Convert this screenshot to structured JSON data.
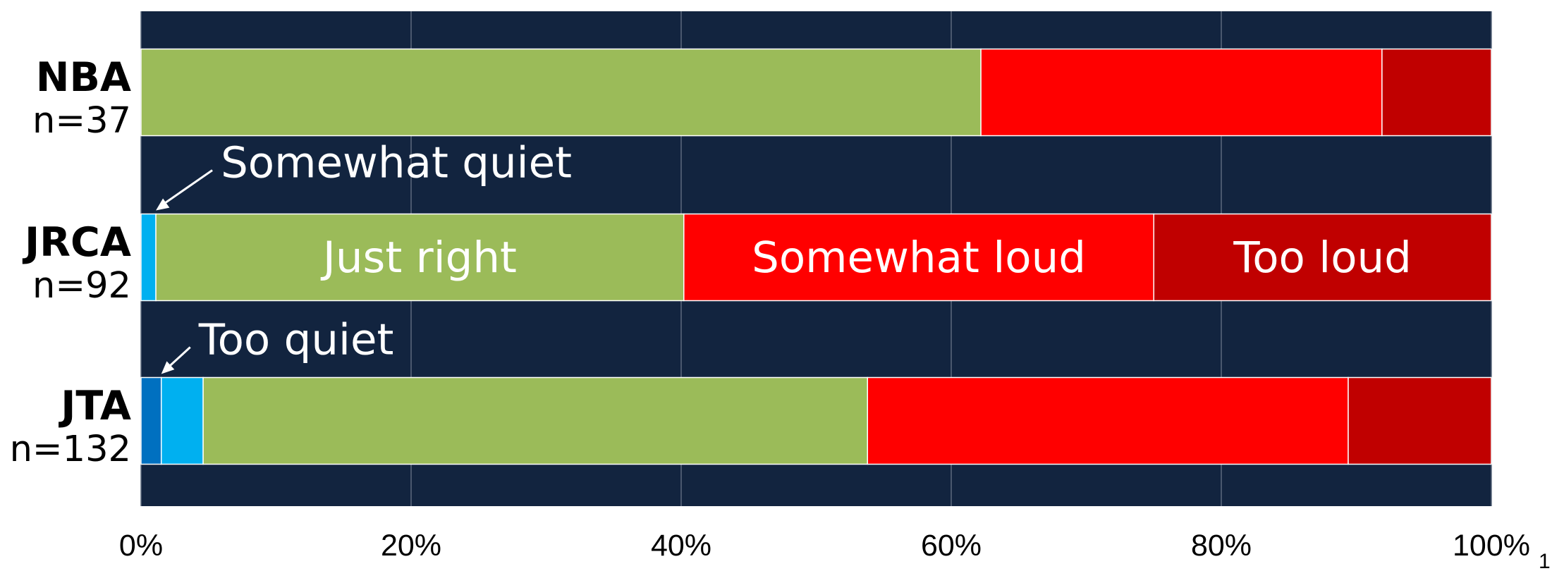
{
  "chart_data": {
    "type": "bar",
    "orientation": "horizontal",
    "stacked": true,
    "xlim": [
      0,
      100
    ],
    "x_tick_labels": [
      "0%",
      "20%",
      "40%",
      "60%",
      "80%",
      "100%"
    ],
    "x_ticks": [
      0,
      20,
      40,
      60,
      80,
      100
    ],
    "grid": true,
    "legend": "none",
    "categories": [
      {
        "name": "NBA",
        "n": "n=37"
      },
      {
        "name": "JRCA",
        "n": "n=92"
      },
      {
        "name": "JTA",
        "n": "n=132"
      }
    ],
    "series": [
      {
        "name": "Too quiet",
        "color": "#0070c0",
        "values": [
          0,
          0,
          1.5
        ]
      },
      {
        "name": "Somewhat quiet",
        "color": "#00b0f0",
        "values": [
          0,
          1.1,
          3.1
        ]
      },
      {
        "name": "Just right",
        "color": "#9bbb59",
        "values": [
          62.2,
          39.1,
          49.2
        ]
      },
      {
        "name": "Somewhat loud",
        "color": "#ff0000",
        "values": [
          29.7,
          34.8,
          35.6
        ]
      },
      {
        "name": "Too loud",
        "color": "#c00000",
        "values": [
          8.1,
          25.0,
          10.6
        ]
      }
    ],
    "segment_labels": {
      "row": "JRCA",
      "series": [
        "Just right",
        "Somewhat loud",
        "Too loud"
      ]
    },
    "callouts": [
      {
        "text": "Somewhat quiet",
        "row": "JRCA",
        "series": "Somewhat quiet"
      },
      {
        "text": "Too quiet",
        "row": "JTA",
        "series": "Too quiet"
      }
    ],
    "plot_background": "#12243f",
    "gridline_color": "#5c6a7e"
  },
  "page_number": "1"
}
